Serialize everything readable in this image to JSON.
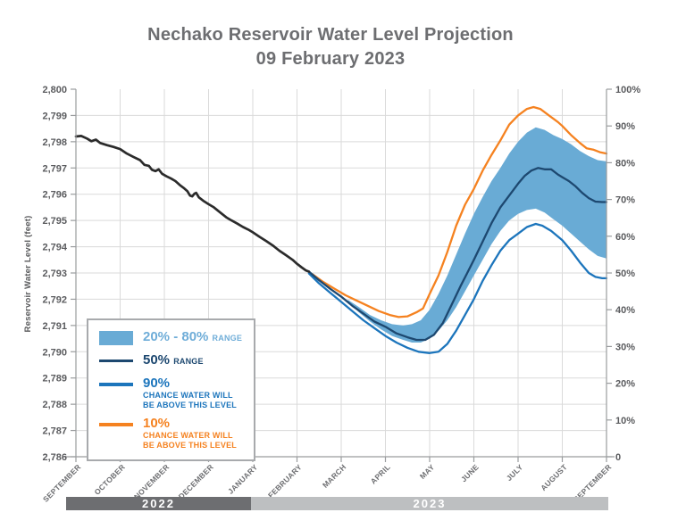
{
  "header": {
    "line1": "Nechako Reservoir Water Level Projection",
    "line2": "09 February 2023"
  },
  "axes": {
    "left_title": "Reservoir Water Level (feet)",
    "left_tick_labels": [
      "2,800",
      "2,799",
      "2,798",
      "2,797",
      "2,796",
      "2,795",
      "2,794",
      "2,793",
      "2,792",
      "2,791",
      "2,790",
      "2,789",
      "2,788",
      "2,787",
      "2,786"
    ],
    "right_tick_labels": [
      "100%",
      "90%",
      "80%",
      "70%",
      "60%",
      "50%",
      "40%",
      "30%",
      "20%",
      "10%",
      "0"
    ],
    "month_labels": [
      "SEPTEMBER",
      "OCTOBER",
      "NOVEMBER",
      "DECEMBER",
      "JANUARY",
      "FEBRUARY",
      "MARCH",
      "APRIL",
      "MAY",
      "JUNE",
      "JULY",
      "AUGUST",
      "SEPTEMBER"
    ]
  },
  "year_bars": [
    {
      "label": "2022",
      "color": "#6d6e71"
    },
    {
      "label": "2023",
      "color": "#bdbfc1"
    }
  ],
  "legend": {
    "band_label": "20% - 80%",
    "band_suffix": "RANGE",
    "p50_label": "50%",
    "p50_suffix": "RANGE",
    "p90_label": "90%",
    "p90_line1": "CHANCE WATER WILL",
    "p90_line2": "BE ABOVE THIS LEVEL",
    "p10_label": "10%",
    "p10_line1": "CHANCE WATER WILL",
    "p10_line2": "BE ABOVE THIS LEVEL"
  },
  "colors": {
    "title_gray": "#6d6e71",
    "axis_text": "#5a5b5e",
    "grid": "#dadada",
    "spine": "#9a9c9e",
    "historical": "#2b2b2b",
    "p50": "#1d4870",
    "p50_legend_text": "#1d4870",
    "p90": "#1c75bc",
    "p10": "#f58220",
    "band": "#69abd5",
    "band_legend_text": "#6fadd8"
  },
  "chart_data": {
    "type": "line",
    "title": "Nechako Reservoir Water Level Projection",
    "subtitle": "09 February 2023",
    "xlabel": "",
    "ylabel": "Reservoir Water Level (feet)",
    "x_axis": {
      "unit": "month",
      "labels": [
        "SEPTEMBER 2022",
        "OCTOBER",
        "NOVEMBER",
        "DECEMBER",
        "JANUARY",
        "FEBRUARY",
        "MARCH",
        "APRIL",
        "MAY",
        "JUNE",
        "JULY",
        "AUGUST",
        "SEPTEMBER 2023"
      ]
    },
    "y_left": {
      "min": 2786,
      "max": 2800,
      "tick_step": 1
    },
    "y_right": {
      "min_label": "0",
      "max_label": "100%",
      "tick_step_percent": 10
    },
    "grid": true,
    "legend_position": "lower-left",
    "band": {
      "name": "20% - 80% range",
      "top": [
        [
          6.15,
          2791.98
        ],
        [
          6.4,
          2791.7
        ],
        [
          6.65,
          2791.4
        ],
        [
          6.9,
          2791.2
        ],
        [
          7.15,
          2791.05
        ],
        [
          7.4,
          2791.0
        ],
        [
          7.6,
          2791.05
        ],
        [
          7.8,
          2791.2
        ],
        [
          8.0,
          2791.6
        ],
        [
          8.2,
          2792.2
        ],
        [
          8.4,
          2792.9
        ],
        [
          8.6,
          2793.7
        ],
        [
          8.8,
          2794.5
        ],
        [
          9.0,
          2795.25
        ],
        [
          9.2,
          2795.9
        ],
        [
          9.4,
          2796.5
        ],
        [
          9.6,
          2797.0
        ],
        [
          9.8,
          2797.55
        ],
        [
          10.0,
          2798.0
        ],
        [
          10.2,
          2798.35
        ],
        [
          10.4,
          2798.55
        ],
        [
          10.6,
          2798.45
        ],
        [
          10.8,
          2798.25
        ],
        [
          11.0,
          2798.1
        ],
        [
          11.2,
          2797.9
        ],
        [
          11.4,
          2797.65
        ],
        [
          11.6,
          2797.45
        ],
        [
          11.8,
          2797.3
        ],
        [
          12,
          2797.25
        ]
      ],
      "bottom": [
        [
          6.15,
          2791.9
        ],
        [
          6.4,
          2791.5
        ],
        [
          6.65,
          2791.15
        ],
        [
          6.9,
          2790.85
        ],
        [
          7.15,
          2790.6
        ],
        [
          7.4,
          2790.45
        ],
        [
          7.6,
          2790.35
        ],
        [
          7.8,
          2790.35
        ],
        [
          8.0,
          2790.5
        ],
        [
          8.2,
          2790.8
        ],
        [
          8.4,
          2791.2
        ],
        [
          8.6,
          2791.7
        ],
        [
          8.8,
          2792.3
        ],
        [
          9.0,
          2792.9
        ],
        [
          9.2,
          2793.5
        ],
        [
          9.4,
          2794.1
        ],
        [
          9.6,
          2794.6
        ],
        [
          9.8,
          2795.0
        ],
        [
          10.0,
          2795.25
        ],
        [
          10.2,
          2795.4
        ],
        [
          10.4,
          2795.45
        ],
        [
          10.6,
          2795.3
        ],
        [
          10.8,
          2795.05
        ],
        [
          11.0,
          2794.8
        ],
        [
          11.2,
          2794.5
        ],
        [
          11.4,
          2794.2
        ],
        [
          11.6,
          2793.9
        ],
        [
          11.8,
          2793.65
        ],
        [
          12,
          2793.55
        ]
      ]
    },
    "series": [
      {
        "name": "Historical water level",
        "points": [
          [
            0,
            2798.2
          ],
          [
            0.12,
            2798.22
          ],
          [
            0.25,
            2798.12
          ],
          [
            0.35,
            2798.02
          ],
          [
            0.45,
            2798.08
          ],
          [
            0.55,
            2797.95
          ],
          [
            0.7,
            2797.87
          ],
          [
            0.85,
            2797.8
          ],
          [
            1.0,
            2797.72
          ],
          [
            1.15,
            2797.55
          ],
          [
            1.3,
            2797.42
          ],
          [
            1.45,
            2797.3
          ],
          [
            1.55,
            2797.12
          ],
          [
            1.65,
            2797.08
          ],
          [
            1.72,
            2796.93
          ],
          [
            1.8,
            2796.88
          ],
          [
            1.87,
            2796.95
          ],
          [
            1.95,
            2796.78
          ],
          [
            2.05,
            2796.68
          ],
          [
            2.15,
            2796.6
          ],
          [
            2.25,
            2796.5
          ],
          [
            2.35,
            2796.35
          ],
          [
            2.45,
            2796.22
          ],
          [
            2.52,
            2796.12
          ],
          [
            2.58,
            2795.95
          ],
          [
            2.63,
            2795.92
          ],
          [
            2.68,
            2796.02
          ],
          [
            2.72,
            2796.05
          ],
          [
            2.78,
            2795.88
          ],
          [
            2.88,
            2795.75
          ],
          [
            3.0,
            2795.62
          ],
          [
            3.12,
            2795.5
          ],
          [
            3.25,
            2795.32
          ],
          [
            3.4,
            2795.12
          ],
          [
            3.52,
            2795.0
          ],
          [
            3.65,
            2794.88
          ],
          [
            3.78,
            2794.75
          ],
          [
            3.9,
            2794.65
          ],
          [
            4.0,
            2794.55
          ],
          [
            4.15,
            2794.38
          ],
          [
            4.3,
            2794.22
          ],
          [
            4.45,
            2794.05
          ],
          [
            4.6,
            2793.85
          ],
          [
            4.75,
            2793.68
          ],
          [
            4.9,
            2793.5
          ],
          [
            5.0,
            2793.35
          ],
          [
            5.1,
            2793.22
          ],
          [
            5.2,
            2793.1
          ],
          [
            5.27,
            2793.05
          ]
        ]
      },
      {
        "name": "50% range",
        "points": [
          [
            5.27,
            2793.05
          ],
          [
            5.5,
            2792.72
          ],
          [
            5.75,
            2792.4
          ],
          [
            6.0,
            2792.1
          ],
          [
            6.25,
            2791.75
          ],
          [
            6.5,
            2791.45
          ],
          [
            6.75,
            2791.15
          ],
          [
            7.0,
            2790.95
          ],
          [
            7.25,
            2790.7
          ],
          [
            7.5,
            2790.55
          ],
          [
            7.7,
            2790.45
          ],
          [
            7.9,
            2790.45
          ],
          [
            8.1,
            2790.65
          ],
          [
            8.3,
            2791.1
          ],
          [
            8.5,
            2791.8
          ],
          [
            8.7,
            2792.5
          ],
          [
            8.85,
            2793.0
          ],
          [
            9.0,
            2793.5
          ],
          [
            9.2,
            2794.2
          ],
          [
            9.4,
            2794.9
          ],
          [
            9.6,
            2795.5
          ],
          [
            9.8,
            2795.95
          ],
          [
            10.0,
            2796.4
          ],
          [
            10.15,
            2796.7
          ],
          [
            10.3,
            2796.9
          ],
          [
            10.45,
            2797.0
          ],
          [
            10.6,
            2796.95
          ],
          [
            10.75,
            2796.95
          ],
          [
            10.9,
            2796.75
          ],
          [
            11.0,
            2796.65
          ],
          [
            11.15,
            2796.5
          ],
          [
            11.3,
            2796.3
          ],
          [
            11.45,
            2796.05
          ],
          [
            11.6,
            2795.85
          ],
          [
            11.75,
            2795.72
          ],
          [
            11.9,
            2795.7
          ],
          [
            12,
            2795.7
          ]
        ]
      },
      {
        "name": "90% chance water will be above this level",
        "points": [
          [
            5.27,
            2792.98
          ],
          [
            5.5,
            2792.6
          ],
          [
            5.75,
            2792.25
          ],
          [
            6.0,
            2791.9
          ],
          [
            6.25,
            2791.55
          ],
          [
            6.5,
            2791.2
          ],
          [
            6.75,
            2790.9
          ],
          [
            7.0,
            2790.6
          ],
          [
            7.25,
            2790.35
          ],
          [
            7.5,
            2790.15
          ],
          [
            7.75,
            2790.0
          ],
          [
            8.0,
            2789.95
          ],
          [
            8.2,
            2790.0
          ],
          [
            8.4,
            2790.3
          ],
          [
            8.6,
            2790.8
          ],
          [
            8.8,
            2791.4
          ],
          [
            9.0,
            2792.0
          ],
          [
            9.2,
            2792.7
          ],
          [
            9.4,
            2793.3
          ],
          [
            9.6,
            2793.85
          ],
          [
            9.8,
            2794.25
          ],
          [
            10.0,
            2794.5
          ],
          [
            10.2,
            2794.75
          ],
          [
            10.4,
            2794.87
          ],
          [
            10.55,
            2794.8
          ],
          [
            10.75,
            2794.6
          ],
          [
            11.0,
            2794.25
          ],
          [
            11.2,
            2793.85
          ],
          [
            11.4,
            2793.4
          ],
          [
            11.6,
            2793.0
          ],
          [
            11.75,
            2792.85
          ],
          [
            11.9,
            2792.8
          ],
          [
            12,
            2792.8
          ]
        ]
      },
      {
        "name": "10% chance water will be above this level",
        "points": [
          [
            5.35,
            2792.95
          ],
          [
            5.6,
            2792.65
          ],
          [
            5.85,
            2792.4
          ],
          [
            6.1,
            2792.15
          ],
          [
            6.35,
            2791.95
          ],
          [
            6.6,
            2791.75
          ],
          [
            6.85,
            2791.55
          ],
          [
            7.1,
            2791.4
          ],
          [
            7.3,
            2791.32
          ],
          [
            7.5,
            2791.35
          ],
          [
            7.7,
            2791.5
          ],
          [
            7.85,
            2791.65
          ],
          [
            8.0,
            2792.2
          ],
          [
            8.2,
            2792.9
          ],
          [
            8.4,
            2793.8
          ],
          [
            8.6,
            2794.8
          ],
          [
            8.8,
            2795.6
          ],
          [
            9.0,
            2796.2
          ],
          [
            9.2,
            2796.9
          ],
          [
            9.4,
            2797.5
          ],
          [
            9.6,
            2798.05
          ],
          [
            9.8,
            2798.65
          ],
          [
            10.0,
            2799.0
          ],
          [
            10.2,
            2799.25
          ],
          [
            10.35,
            2799.32
          ],
          [
            10.5,
            2799.25
          ],
          [
            10.7,
            2799.0
          ],
          [
            10.9,
            2798.75
          ],
          [
            11.0,
            2798.6
          ],
          [
            11.2,
            2798.25
          ],
          [
            11.4,
            2797.95
          ],
          [
            11.55,
            2797.75
          ],
          [
            11.7,
            2797.7
          ],
          [
            11.85,
            2797.6
          ],
          [
            12,
            2797.55
          ]
        ]
      }
    ]
  }
}
